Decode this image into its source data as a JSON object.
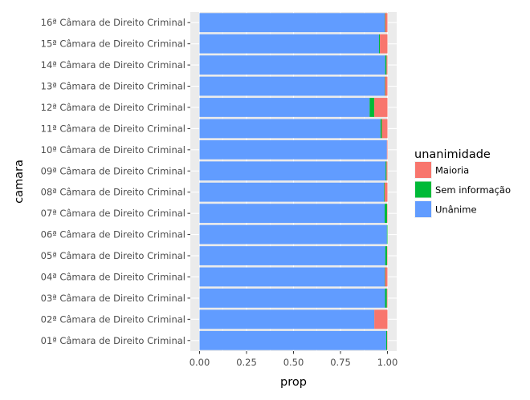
{
  "chart_data": {
    "type": "bar",
    "orientation": "horizontal",
    "stacked": true,
    "xlabel": "prop",
    "ylabel": "camara",
    "xlim": [
      0,
      1
    ],
    "x_ticks": [
      "0.00",
      "0.25",
      "0.50",
      "0.75",
      "1.00"
    ],
    "x_tick_values": [
      0,
      0.25,
      0.5,
      0.75,
      1.0
    ],
    "grid": true,
    "legend_position": "right",
    "legend_title": "unanimidade",
    "categories": [
      "01ª Câmara de Direito Criminal",
      "02ª Câmara de Direito Criminal",
      "03ª Câmara de Direito Criminal",
      "04ª Câmara de Direito Criminal",
      "05ª Câmara de Direito Criminal",
      "06ª Câmara de Direito Criminal",
      "07ª Câmara de Direito Criminal",
      "08ª Câmara de Direito Criminal",
      "09ª Câmara de Direito Criminal",
      "10ª Câmara de Direito Criminal",
      "11ª Câmara de Direito Criminal",
      "12ª Câmara de Direito Criminal",
      "13ª Câmara de Direito Criminal",
      "14ª Câmara de Direito Criminal",
      "15ª Câmara de Direito Criminal",
      "16ª Câmara de Direito Criminal"
    ],
    "series": [
      {
        "name": "Unânime",
        "color": "#619CFF",
        "values": [
          0.993,
          0.93,
          0.987,
          0.985,
          0.988,
          0.997,
          0.985,
          0.982,
          0.99,
          0.997,
          0.963,
          0.905,
          0.985,
          0.988,
          0.955,
          0.985
        ]
      },
      {
        "name": "Sem informação",
        "color": "#00BA38",
        "values": [
          0.005,
          0.0,
          0.01,
          0.002,
          0.01,
          0.003,
          0.013,
          0.003,
          0.005,
          0.0,
          0.007,
          0.025,
          0.002,
          0.007,
          0.005,
          0.002
        ]
      },
      {
        "name": "Maioria",
        "color": "#F8766D",
        "values": [
          0.002,
          0.07,
          0.003,
          0.013,
          0.002,
          0.0,
          0.002,
          0.015,
          0.005,
          0.003,
          0.03,
          0.07,
          0.013,
          0.005,
          0.04,
          0.013
        ]
      }
    ],
    "legend_order": [
      "Maioria",
      "Sem informação",
      "Unânime"
    ]
  }
}
